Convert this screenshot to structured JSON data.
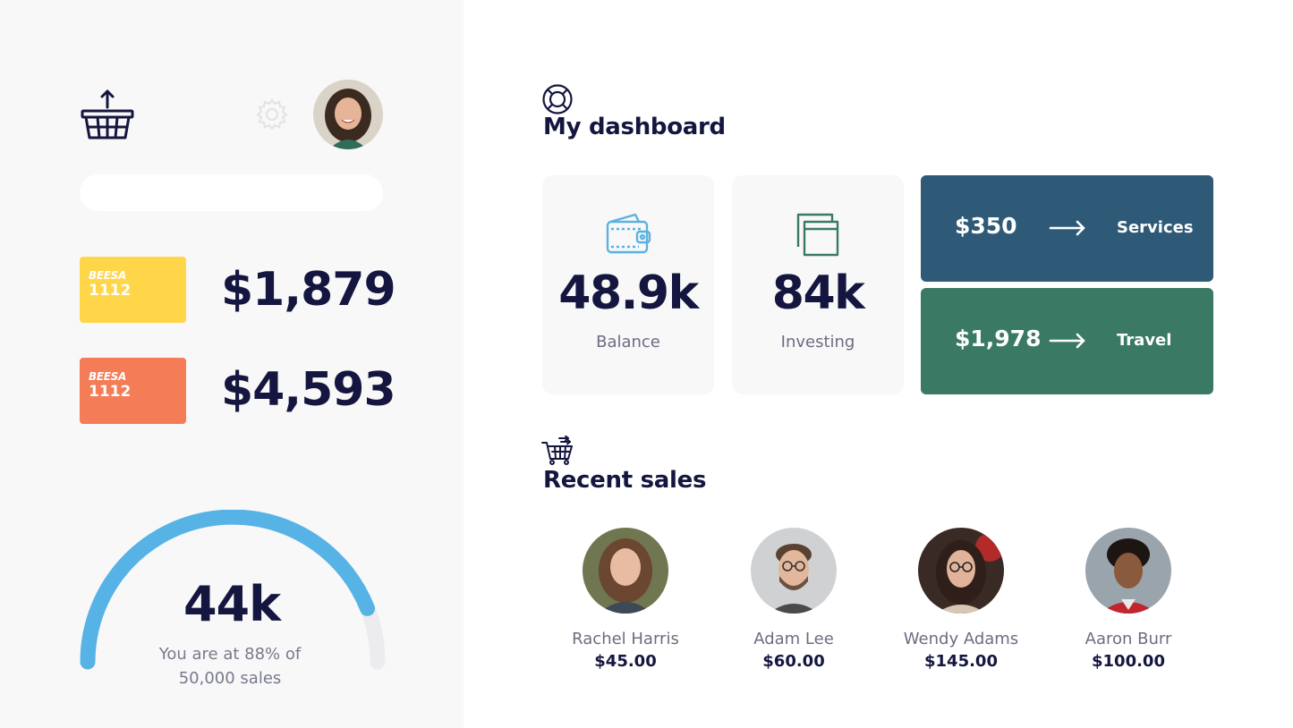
{
  "sidebar": {
    "logo_icon": "basket-upload-icon",
    "settings_icon": "gear-icon",
    "search": {
      "placeholder": "",
      "value": ""
    },
    "cards": [
      {
        "brand": "BEESA",
        "number": "1112",
        "amount": "$1,879",
        "color": "#ffd54a"
      },
      {
        "brand": "BEESA",
        "number": "1112",
        "amount": "$4,593",
        "color": "#f47c56"
      }
    ],
    "goal": {
      "value": "44k",
      "caption_line1": "You are at 88% of",
      "caption_line2": "50,000 sales",
      "progress": 0.88,
      "color": "#57b3e6"
    }
  },
  "dashboard": {
    "title": "My dashboard",
    "icon": "lifebuoy-icon",
    "stats": [
      {
        "value": "48.9k",
        "label": "Balance",
        "icon": "wallet-icon",
        "color": "#5ab2e0"
      },
      {
        "value": "84k",
        "label": "Investing",
        "icon": "stacked-squares-icon",
        "color": "#3a7a65"
      }
    ],
    "tiles": [
      {
        "amount": "$350",
        "label": "Services",
        "color": "#2e5a78"
      },
      {
        "amount": "$1,978",
        "label": "Travel",
        "color": "#3a7a65"
      }
    ]
  },
  "sales": {
    "title": "Recent sales",
    "icon": "cart-icon",
    "people": [
      {
        "name": "Rachel Harris",
        "amount": "$45.00"
      },
      {
        "name": "Adam Lee",
        "amount": "$60.00"
      },
      {
        "name": "Wendy Adams",
        "amount": "$145.00"
      },
      {
        "name": "Aaron Burr",
        "amount": "$100.00"
      }
    ]
  }
}
